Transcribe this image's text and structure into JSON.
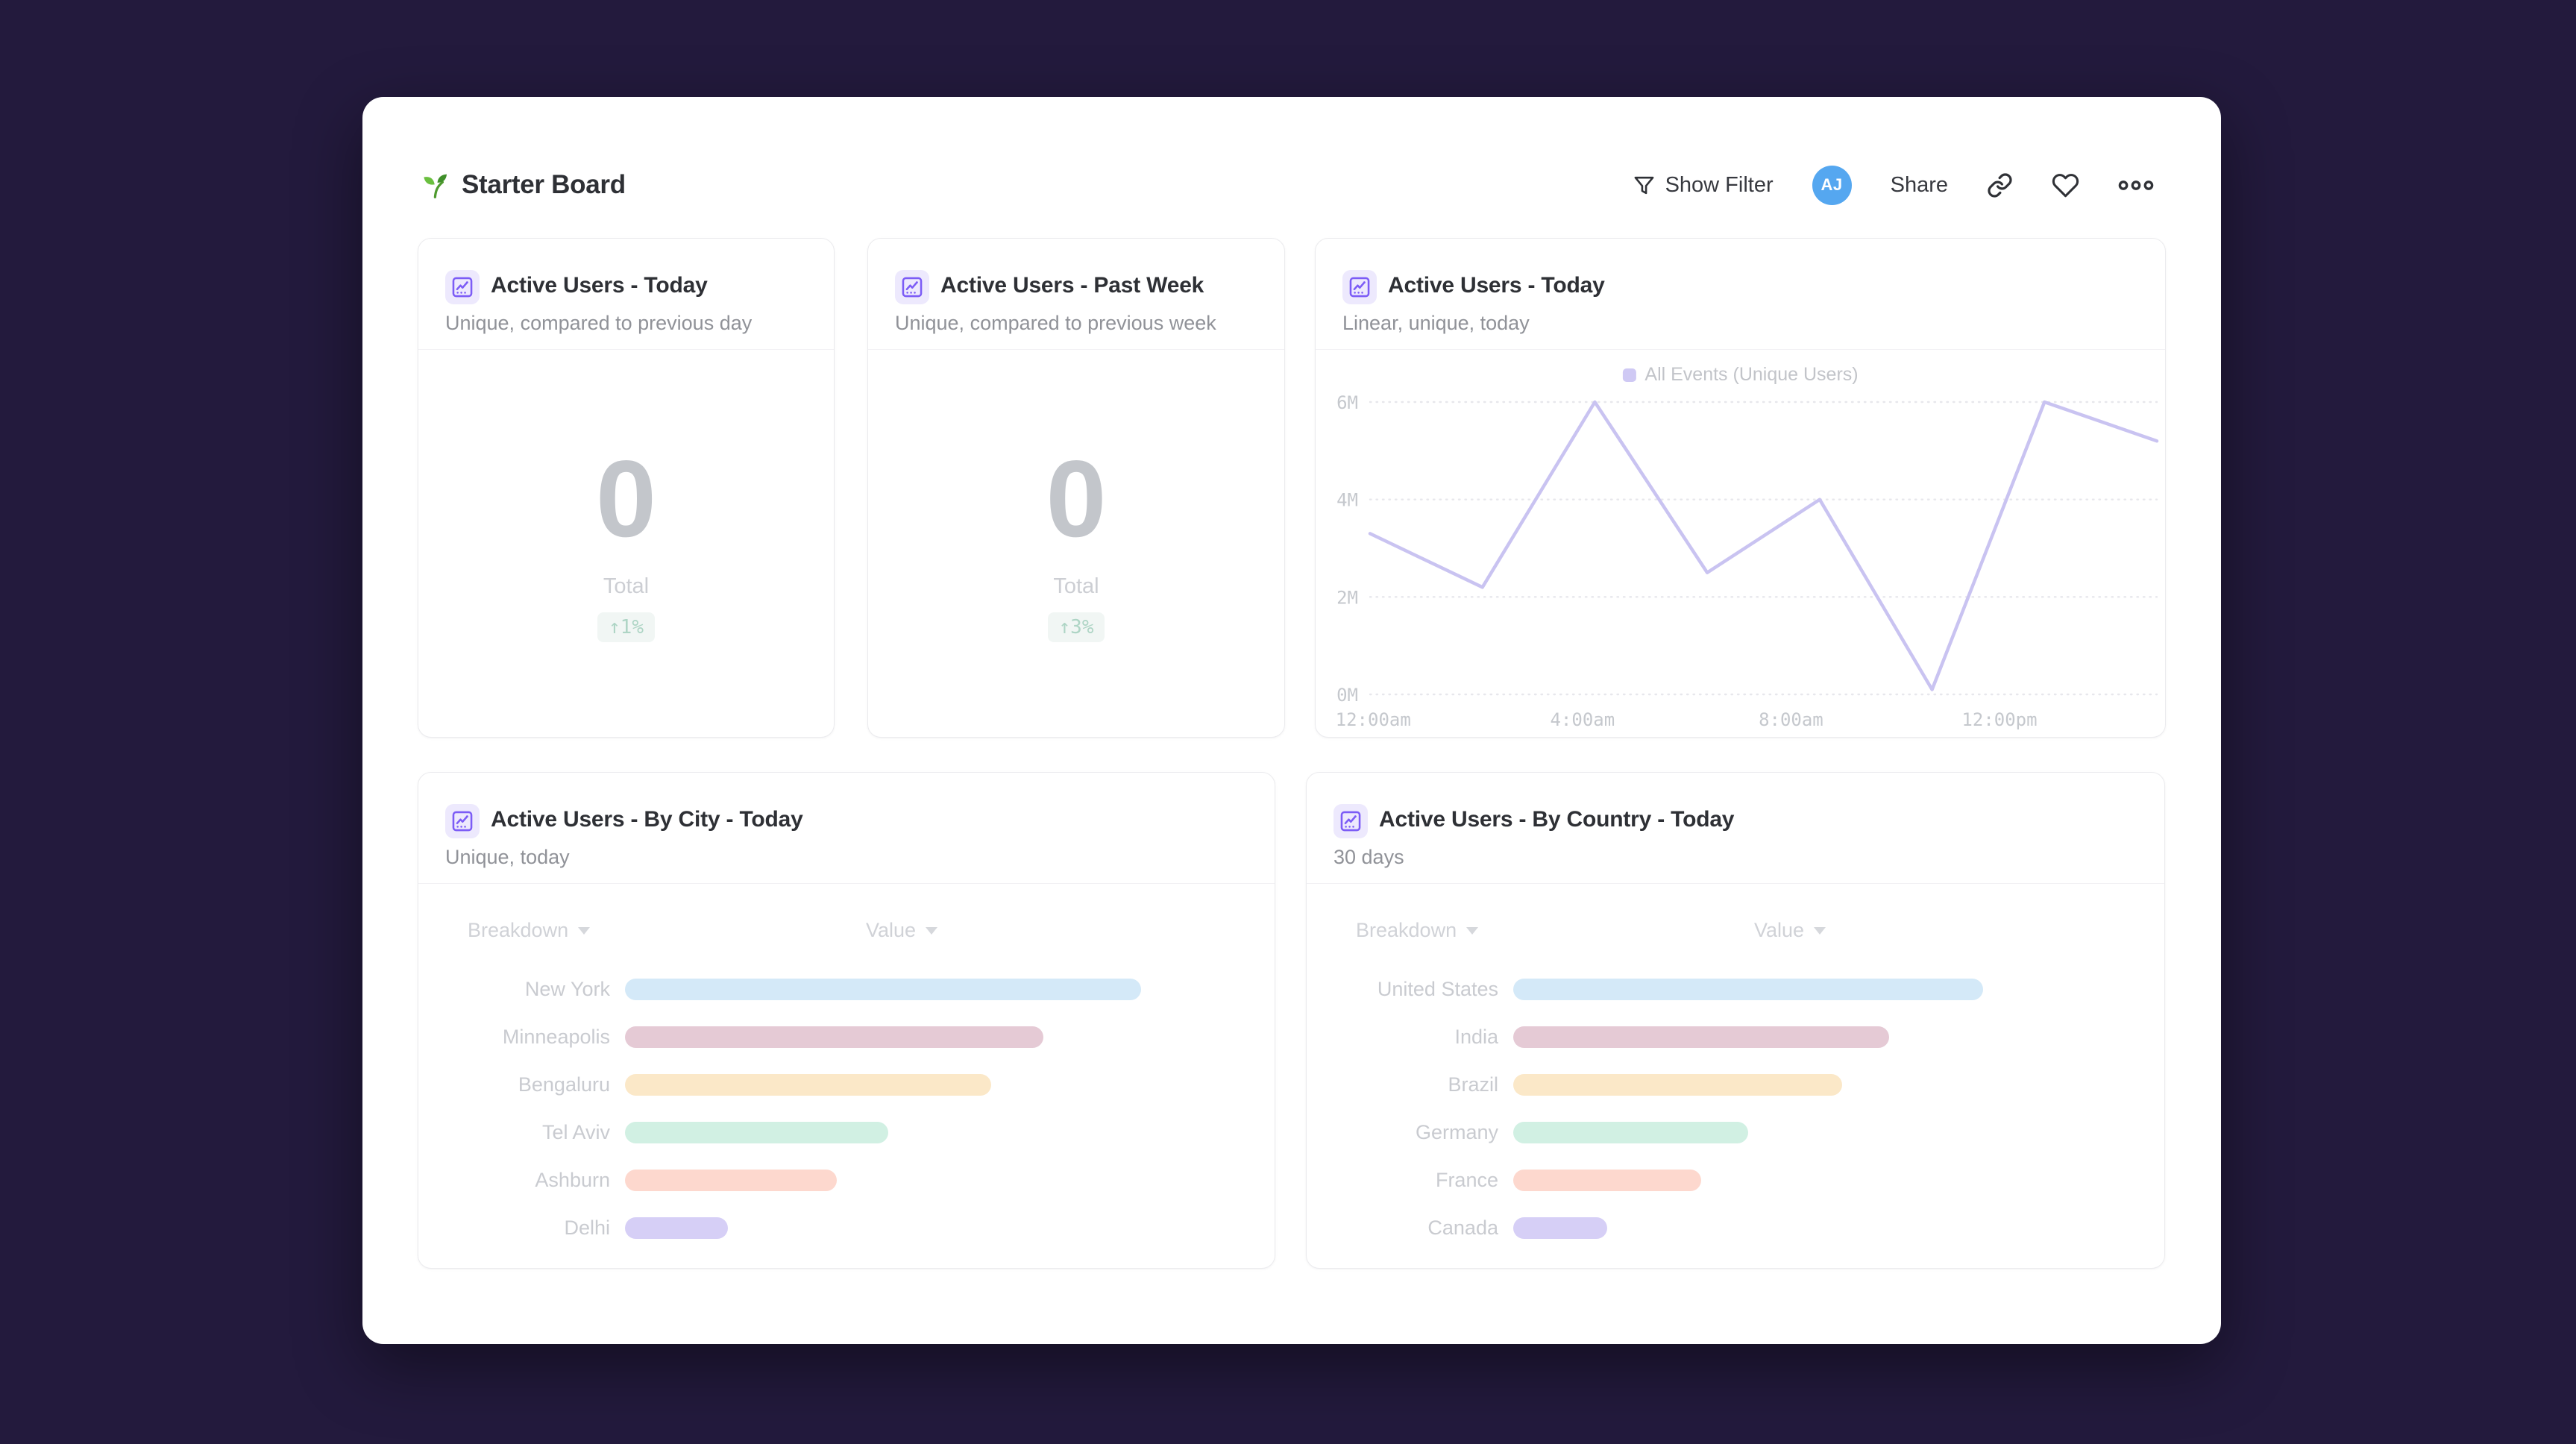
{
  "window": {
    "background": "#231a3d",
    "board_background": "#ffffff"
  },
  "header": {
    "title": "Starter Board",
    "title_icon": "seedling-icon",
    "actions": {
      "show_filter_label": "Show Filter",
      "avatar_initials": "AJ",
      "avatar_color": "#55a7f0",
      "share_label": "Share",
      "icon_names": [
        "filter-icon",
        "copy-link-icon",
        "heart-icon",
        "more-options-icon"
      ]
    }
  },
  "kpi_cards": [
    {
      "title": "Active Users - Today",
      "subtitle": "Unique, compared to previous day",
      "value": "0",
      "value_label": "Total",
      "delta": "↑1%",
      "delta_color": "#aed5c5"
    },
    {
      "title": "Active Users - Past Week",
      "subtitle": "Unique, compared to previous week",
      "value": "0",
      "value_label": "Total",
      "delta": "↑3%",
      "delta_color": "#aed5c5"
    }
  ],
  "line_card": {
    "title": "Active Users - Today",
    "subtitle": "Linear, unique, today"
  },
  "breakdown_cards": [
    {
      "title": "Active Users - By City - Today",
      "subtitle": "Unique, today",
      "columns": {
        "breakdown": "Breakdown",
        "value": "Value"
      }
    },
    {
      "title": "Active Users - By Country - Today",
      "subtitle": "30 days",
      "columns": {
        "breakdown": "Breakdown",
        "value": "Value"
      }
    }
  ],
  "chart_data": [
    {
      "id": "active-users-today-line",
      "type": "line",
      "title": "Active Users - Today",
      "subtitle": "Linear, unique, today",
      "legend": [
        "All Events (Unique Users)"
      ],
      "legend_position": "top-center",
      "x": [
        "12:00am",
        "2:00am",
        "4:00am",
        "6:00am",
        "8:00am",
        "10:00am",
        "12:00pm",
        "2:00pm"
      ],
      "x_ticks_shown": [
        "12:00am",
        "4:00am",
        "8:00am",
        "12:00pm"
      ],
      "series": [
        {
          "name": "All Events (Unique Users)",
          "color": "#c9c3f1",
          "values_millions": [
            3.3,
            2.2,
            6.0,
            2.5,
            4.0,
            0.1,
            6.0,
            5.2
          ]
        }
      ],
      "ylim_millions": [
        0,
        6
      ],
      "y_ticks": [
        "0M",
        "2M",
        "4M",
        "6M"
      ],
      "grid": "horizontal-dotted",
      "grid_color": "#e7e7ec"
    },
    {
      "id": "active-users-by-city",
      "type": "bar",
      "orientation": "horizontal",
      "title": "Active Users - By City - Today",
      "subtitle": "Unique, today",
      "columns": [
        "Breakdown",
        "Value"
      ],
      "categories": [
        "New York",
        "Minneapolis",
        "Bengaluru",
        "Tel Aviv",
        "Ashburn",
        "Delhi"
      ],
      "values_relative_pct": [
        100,
        81,
        71,
        51,
        41,
        20
      ],
      "colors": [
        "#d4e9f8",
        "#e5cad5",
        "#fbe8c8",
        "#d1f0e3",
        "#fdd8ce",
        "#d6cff6"
      ]
    },
    {
      "id": "active-users-by-country",
      "type": "bar",
      "orientation": "horizontal",
      "title": "Active Users - By Country - Today",
      "subtitle": "30 days",
      "columns": [
        "Breakdown",
        "Value"
      ],
      "categories": [
        "United States",
        "India",
        "Brazil",
        "Germany",
        "France",
        "Canada"
      ],
      "values_relative_pct": [
        100,
        80,
        70,
        50,
        40,
        20
      ],
      "colors": [
        "#d4e9f8",
        "#e5cad5",
        "#fbe8c8",
        "#d1f0e3",
        "#fdd8ce",
        "#d6cff6"
      ]
    }
  ]
}
